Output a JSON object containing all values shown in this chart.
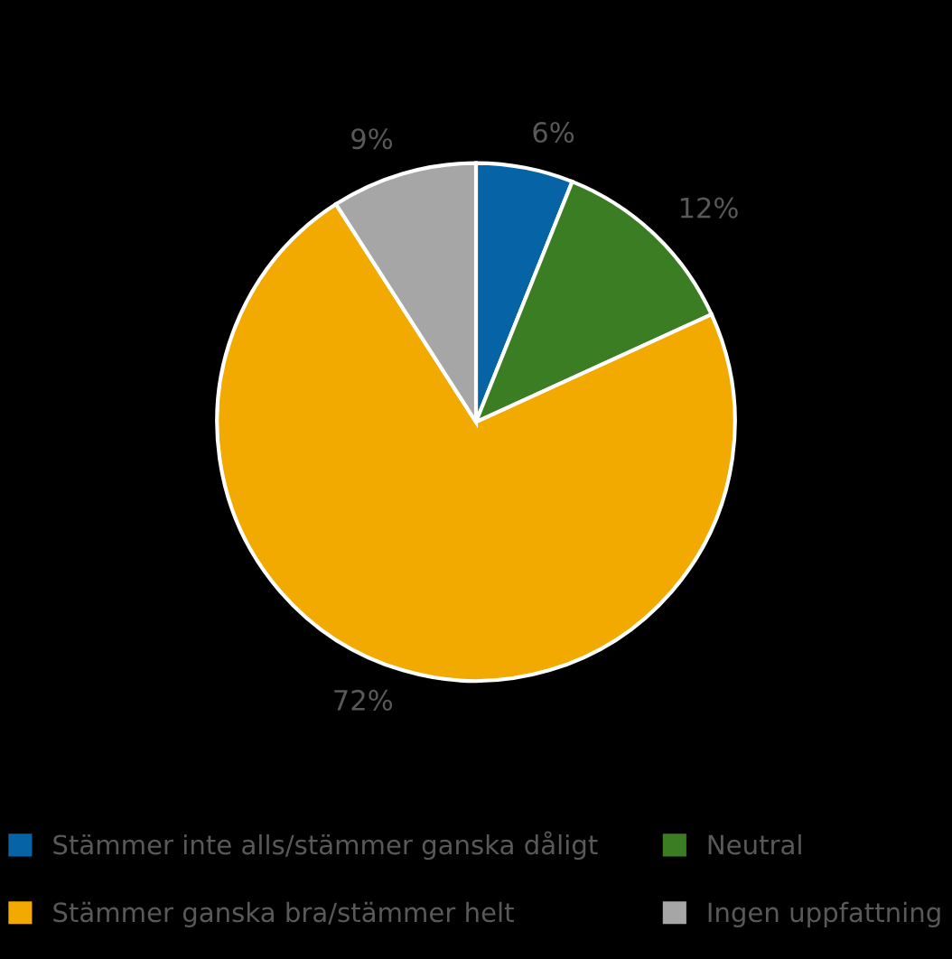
{
  "chart_data": {
    "type": "pie",
    "categories": [
      "Stämmer inte alls/stämmer ganska dåligt",
      "Neutral",
      "Stämmer ganska bra/stämmer helt",
      "Ingen uppfattning"
    ],
    "values": [
      6,
      12,
      72,
      9
    ],
    "colors": [
      "#0563a6",
      "#3a7d22",
      "#f2a900",
      "#a6a6a6"
    ],
    "value_labels": [
      "6%",
      "12%",
      "72%",
      "9%"
    ],
    "legend": "bottom"
  }
}
